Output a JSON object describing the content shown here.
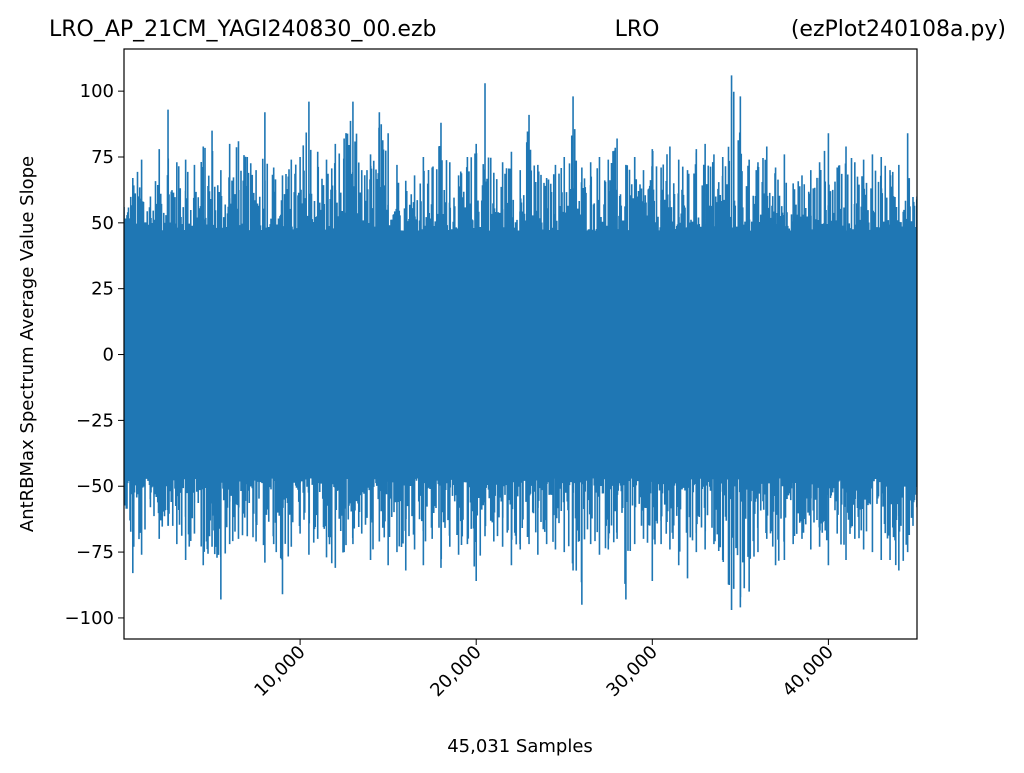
{
  "chart_data": {
    "type": "line",
    "title_left": "LRO_AP_21CM_YAGI240830_00.ezb",
    "title_center": "LRO",
    "title_right": "(ezPlot240108a.py)",
    "xlabel": "45,031 Samples",
    "ylabel": "AntRBMax Spectrum Average Value Slope",
    "xlim": [
      0,
      45031
    ],
    "ylim": [
      -108,
      116
    ],
    "x_ticks": [
      {
        "value": 10000,
        "label": "10,000"
      },
      {
        "value": 20000,
        "label": "20,000"
      },
      {
        "value": 30000,
        "label": "30,000"
      },
      {
        "value": 40000,
        "label": "40,000"
      }
    ],
    "y_ticks": [
      {
        "value": 100,
        "label": "100"
      },
      {
        "value": 75,
        "label": "75"
      },
      {
        "value": 50,
        "label": "50"
      },
      {
        "value": 25,
        "label": "25"
      },
      {
        "value": 0,
        "label": "0"
      },
      {
        "value": -25,
        "label": "−25"
      },
      {
        "value": -50,
        "label": "−50"
      },
      {
        "value": -75,
        "label": "−75"
      },
      {
        "value": -100,
        "label": "−100"
      }
    ],
    "series": [
      {
        "color": "#1f77b4",
        "n_samples": 45031,
        "envelope": {
          "x": [
            0,
            500,
            1000,
            1500,
            2000,
            2500,
            3000,
            3500,
            4000,
            4500,
            5000,
            5500,
            6000,
            6500,
            7000,
            7500,
            8000,
            8500,
            9000,
            9500,
            10000,
            10500,
            11000,
            11500,
            12000,
            12500,
            13000,
            13500,
            14000,
            14500,
            15000,
            15500,
            16000,
            16500,
            17000,
            17500,
            18000,
            18500,
            19000,
            19500,
            20000,
            20500,
            21000,
            21500,
            22000,
            22500,
            23000,
            23500,
            24000,
            24500,
            25000,
            25500,
            26000,
            26500,
            27000,
            27500,
            28000,
            28500,
            29000,
            29500,
            30000,
            30500,
            31000,
            31500,
            32000,
            32500,
            33000,
            33500,
            34000,
            34500,
            35000,
            35500,
            36000,
            36500,
            37000,
            37500,
            38000,
            38500,
            39000,
            39500,
            40000,
            40500,
            41000,
            41500,
            42000,
            42500,
            43000,
            43500,
            44000,
            44500,
            45031
          ],
          "upper": [
            56,
            67,
            74,
            60,
            78,
            93,
            73,
            74,
            72,
            79,
            85,
            70,
            80,
            81,
            75,
            70,
            92,
            71,
            68,
            74,
            75,
            96,
            77,
            74,
            80,
            82,
            96,
            70,
            76,
            92,
            84,
            72,
            66,
            68,
            75,
            71,
            88,
            73,
            68,
            75,
            80,
            103,
            69,
            73,
            77,
            70,
            91,
            72,
            67,
            72,
            75,
            98,
            71,
            73,
            75,
            74,
            82,
            72,
            75,
            70,
            78,
            71,
            79,
            74,
            70,
            78,
            80,
            76,
            75,
            106,
            98,
            74,
            73,
            79,
            71,
            76,
            65,
            68,
            70,
            73,
            84,
            71,
            79,
            73,
            74,
            76,
            75,
            70,
            72,
            84,
            60
          ],
          "lower": [
            -55,
            -83,
            -76,
            -58,
            -70,
            -65,
            -72,
            -78,
            -68,
            -80,
            -73,
            -93,
            -72,
            -70,
            -69,
            -71,
            -79,
            -72,
            -91,
            -73,
            -68,
            -76,
            -70,
            -77,
            -81,
            -75,
            -72,
            -68,
            -78,
            -71,
            -80,
            -75,
            -82,
            -74,
            -80,
            -70,
            -81,
            -73,
            -76,
            -72,
            -86,
            -69,
            -71,
            -73,
            -80,
            -74,
            -72,
            -76,
            -72,
            -74,
            -75,
            -82,
            -95,
            -72,
            -76,
            -74,
            -70,
            -93,
            -72,
            -70,
            -86,
            -72,
            -74,
            -80,
            -85,
            -75,
            -74,
            -72,
            -78,
            -97,
            -96,
            -90,
            -75,
            -70,
            -80,
            -78,
            -72,
            -70,
            -74,
            -73,
            -80,
            -68,
            -78,
            -70,
            -74,
            -75,
            -78,
            -78,
            -82,
            -75,
            -58
          ]
        },
        "core_band": [
          -47,
          47
        ]
      }
    ]
  }
}
